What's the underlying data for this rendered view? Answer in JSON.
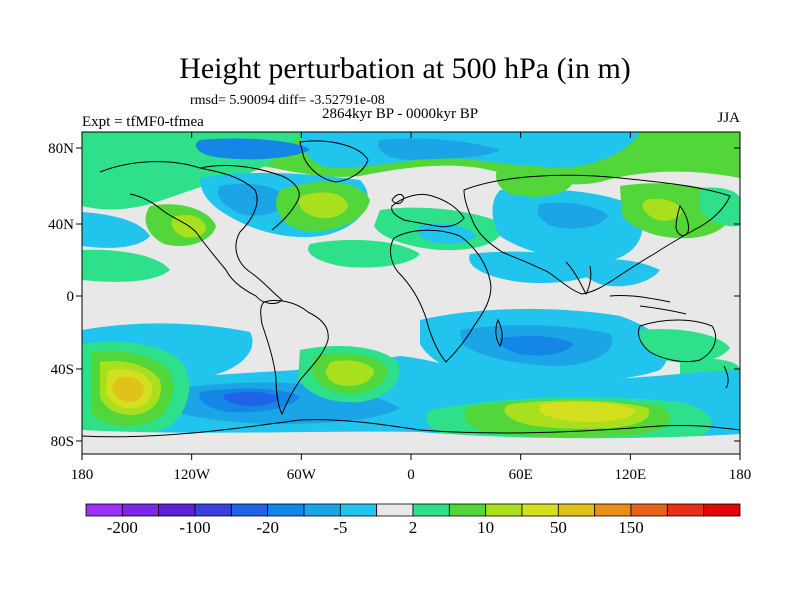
{
  "title": "Height perturbation at 500 hPa (in m)",
  "subtitle": "rmsd= 5.90094 diff= -3.52791e-08",
  "period": "2864kyr BP - 0000kyr BP",
  "experiment": "Expt = tfMF0-tfmea",
  "season": "JJA",
  "axes": {
    "lat_ticks": [
      "80N",
      "40N",
      "0",
      "40S",
      "80S"
    ],
    "lon_ticks": [
      "180",
      "120W",
      "60W",
      "0",
      "60E",
      "120E",
      "180"
    ]
  },
  "colorbar": {
    "colors": [
      "#9b30ff",
      "#7a28e6",
      "#5e20d6",
      "#3a3fe0",
      "#1f63e6",
      "#1486e6",
      "#1ba5e6",
      "#21c4ec",
      "#e8e8e8",
      "#2fe08a",
      "#52d63a",
      "#a8e01e",
      "#d4e01e",
      "#e0c21a",
      "#e8901a",
      "#e8601a",
      "#e83018",
      "#e00808"
    ],
    "labels": [
      "-200",
      "-100",
      "-20",
      "-5",
      "2",
      "10",
      "50",
      "150"
    ]
  },
  "field_colors": {
    "ocean_background": "#e8e8e8",
    "light_blue": "#21c4ec",
    "mid_blue": "#1ba5e6",
    "blue": "#1486e6",
    "dark_blue": "#1f63e6",
    "green_light": "#2fe08a",
    "green": "#52d63a",
    "yellow_green": "#a8e01e",
    "yellow": "#d4e01e",
    "orange_yellow": "#e0c21a"
  }
}
